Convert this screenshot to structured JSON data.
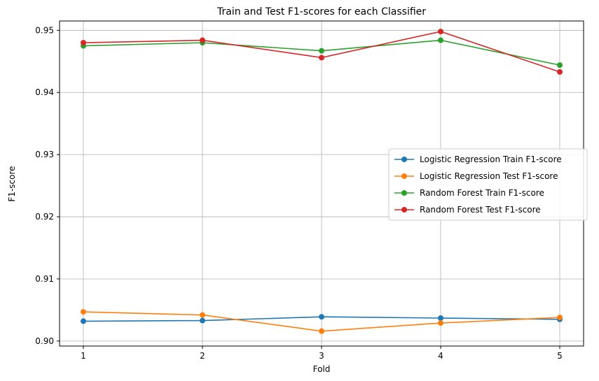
{
  "chart_data": {
    "type": "line",
    "title": "Train and Test F1-scores for each Classifier",
    "xlabel": "Fold",
    "ylabel": "F1-score",
    "x": [
      1,
      2,
      3,
      4,
      5
    ],
    "xticks": [
      "1",
      "2",
      "3",
      "4",
      "5"
    ],
    "yticks": [
      "0.90",
      "0.91",
      "0.92",
      "0.93",
      "0.94",
      "0.95"
    ],
    "xlim": [
      0.8,
      5.2
    ],
    "ylim": [
      0.8992,
      0.9515
    ],
    "grid": true,
    "legend_position": "center-right",
    "series": [
      {
        "name": "Logistic Regression Train F1-score",
        "color": "#1f77b4",
        "values": [
          0.9032,
          0.9033,
          0.9039,
          0.9037,
          0.9035
        ]
      },
      {
        "name": "Logistic Regression Test F1-score",
        "color": "#ff7f0e",
        "values": [
          0.9047,
          0.9042,
          0.9016,
          0.9029,
          0.9038
        ]
      },
      {
        "name": "Random Forest Train F1-score",
        "color": "#2ca02c",
        "values": [
          0.9475,
          0.948,
          0.9467,
          0.9484,
          0.9444
        ]
      },
      {
        "name": "Random Forest Test F1-score",
        "color": "#d62728",
        "values": [
          0.948,
          0.9484,
          0.9456,
          0.9498,
          0.9433
        ]
      }
    ]
  }
}
